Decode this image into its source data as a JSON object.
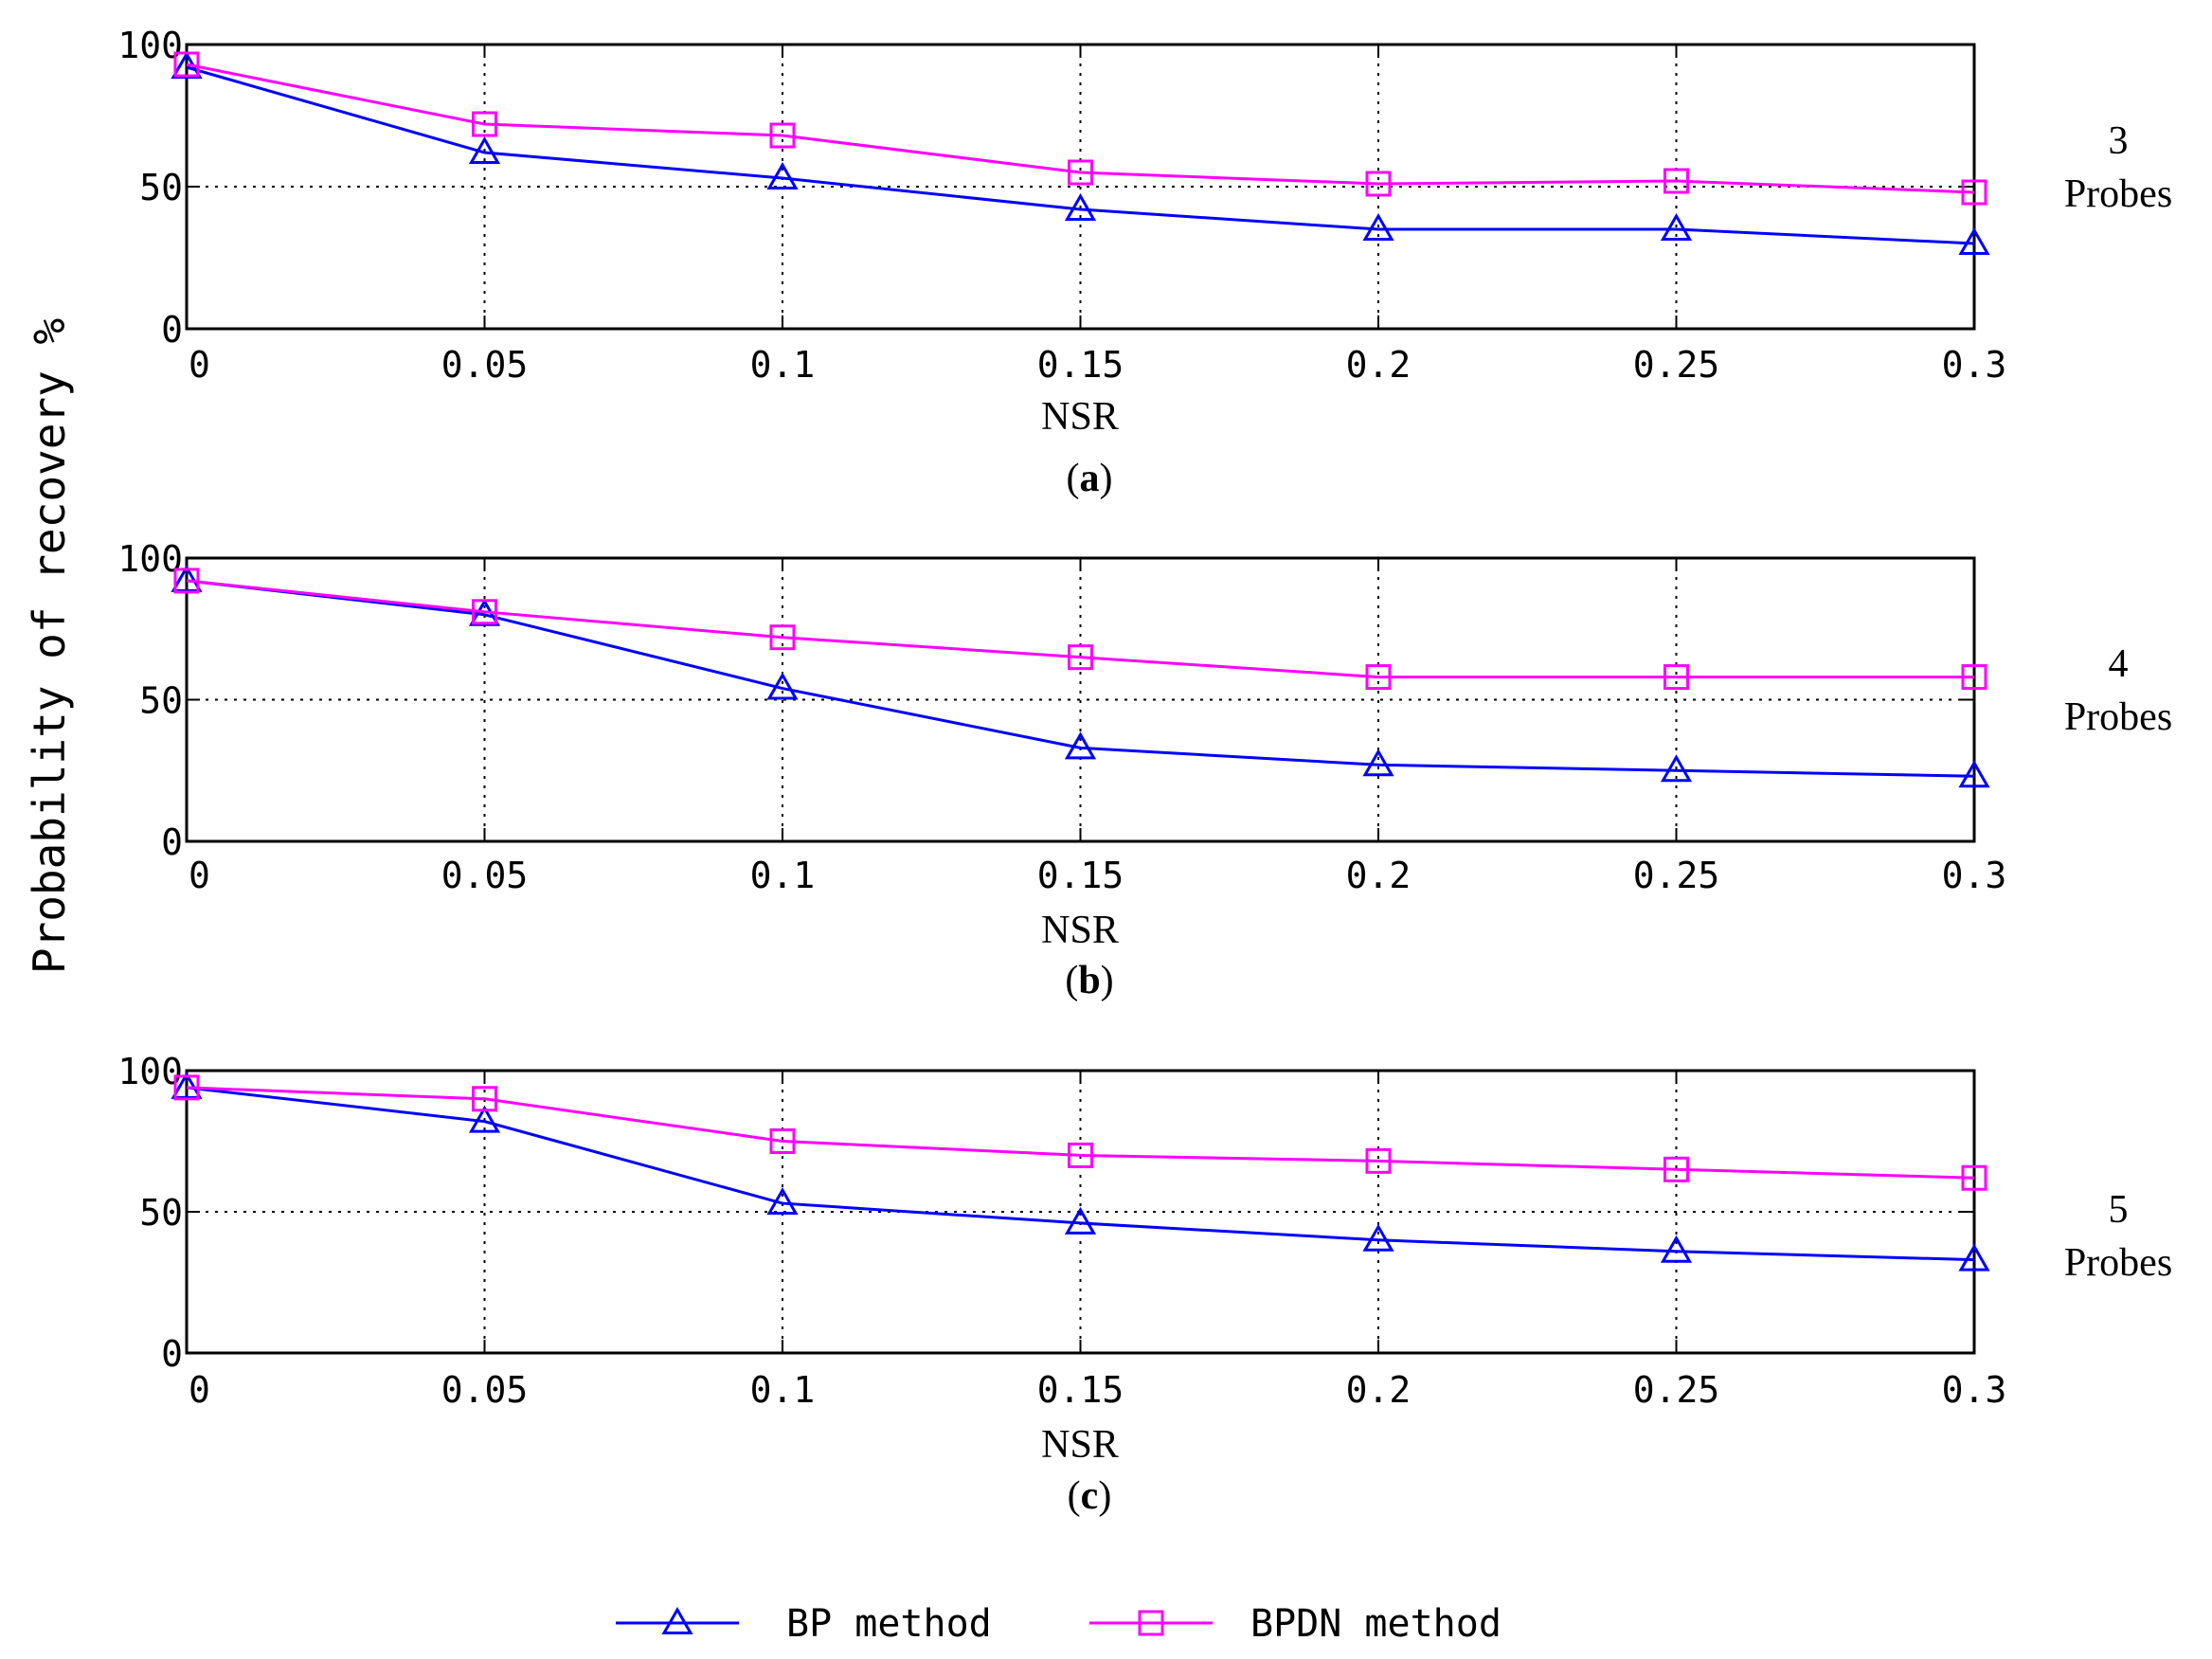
{
  "chart_data": [
    {
      "type": "line",
      "panel": "(a)",
      "side_label_count": "3",
      "side_label_word": "Probes",
      "xlabel": "NSR",
      "ylabel": "Probability of recovery %",
      "x": [
        0,
        0.05,
        0.1,
        0.15,
        0.2,
        0.25,
        0.3
      ],
      "x_tick_labels": [
        "0",
        "0.05",
        "0.1",
        "0.15",
        "0.2",
        "0.25",
        "0.3"
      ],
      "y_ticks": [
        0,
        50,
        100
      ],
      "ylim": [
        0,
        100
      ],
      "series": [
        {
          "name": "BP method",
          "values": [
            92,
            62,
            53,
            42,
            35,
            35,
            30
          ]
        },
        {
          "name": "BPDN method",
          "values": [
            93,
            72,
            68,
            55,
            51,
            52,
            48
          ]
        }
      ]
    },
    {
      "type": "line",
      "panel": "(b)",
      "side_label_count": "4",
      "side_label_word": "Probes",
      "xlabel": "NSR",
      "ylabel": "Probability of recovery %",
      "x": [
        0,
        0.05,
        0.1,
        0.15,
        0.2,
        0.25,
        0.3
      ],
      "x_tick_labels": [
        "0",
        "0.05",
        "0.1",
        "0.15",
        "0.2",
        "0.25",
        "0.3"
      ],
      "y_ticks": [
        0,
        50,
        100
      ],
      "ylim": [
        0,
        100
      ],
      "series": [
        {
          "name": "BP method",
          "values": [
            92,
            80,
            54,
            33,
            27,
            25,
            23
          ]
        },
        {
          "name": "BPDN method",
          "values": [
            92,
            81,
            72,
            65,
            58,
            58,
            58
          ]
        }
      ]
    },
    {
      "type": "line",
      "panel": "(c)",
      "side_label_count": "5",
      "side_label_word": "Probes",
      "xlabel": "NSR",
      "ylabel": "Probability of recovery %",
      "x": [
        0,
        0.05,
        0.1,
        0.15,
        0.2,
        0.25,
        0.3
      ],
      "x_tick_labels": [
        "0",
        "0.05",
        "0.1",
        "0.15",
        "0.2",
        "0.25",
        "0.3"
      ],
      "y_ticks": [
        0,
        50,
        100
      ],
      "ylim": [
        0,
        100
      ],
      "series": [
        {
          "name": "BP method",
          "values": [
            94,
            82,
            53,
            46,
            40,
            36,
            33
          ]
        },
        {
          "name": "BPDN method",
          "values": [
            94,
            90,
            75,
            70,
            68,
            65,
            62
          ]
        }
      ]
    }
  ],
  "legend": {
    "items": [
      {
        "label": "BP method",
        "color": "#0000ff",
        "marker": "triangle"
      },
      {
        "label": "BPDN method",
        "color": "#ff00ff",
        "marker": "square"
      }
    ]
  },
  "colors": {
    "bp": "#0000ff",
    "bpdn": "#ff00ff",
    "grid": "#000000"
  }
}
